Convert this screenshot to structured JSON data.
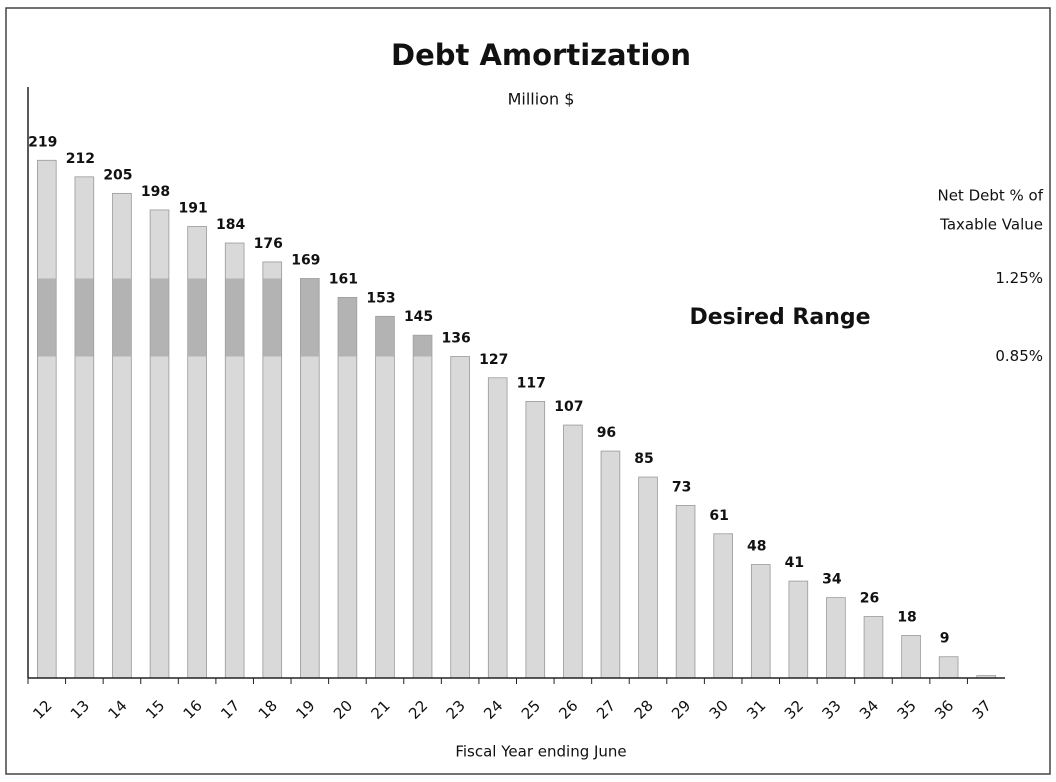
{
  "chart_data": {
    "type": "bar",
    "title": "Debt Amortization",
    "subtitle": "Million $",
    "x_label": "Fiscal Year ending June",
    "categories": [
      "12",
      "13",
      "14",
      "15",
      "16",
      "17",
      "18",
      "19",
      "20",
      "21",
      "22",
      "23",
      "24",
      "25",
      "26",
      "27",
      "28",
      "29",
      "30",
      "31",
      "32",
      "33",
      "34",
      "35",
      "36",
      "37"
    ],
    "values": [
      219,
      212,
      205,
      198,
      191,
      184,
      176,
      169,
      161,
      153,
      145,
      136,
      127,
      117,
      107,
      96,
      85,
      73,
      61,
      48,
      41,
      34,
      26,
      18,
      9,
      1
    ],
    "value_labels": [
      "219",
      "212",
      "205",
      "198",
      "191",
      "184",
      "176",
      "169",
      "161",
      "153",
      "145",
      "136",
      "127",
      "117",
      "107",
      "96",
      "85",
      "73",
      "61",
      "48",
      "41",
      "34",
      "26",
      "18",
      "9",
      null
    ],
    "color": "#d9d9d9",
    "ylim": [
      0,
      250
    ],
    "range": {
      "label": "Desired Range",
      "low": 136,
      "high": 169,
      "low_label": "0.85%",
      "high_label": "1.25%",
      "color": "#a6a6a6"
    },
    "side_note": [
      "Net Debt % of",
      "Taxable Value"
    ]
  }
}
